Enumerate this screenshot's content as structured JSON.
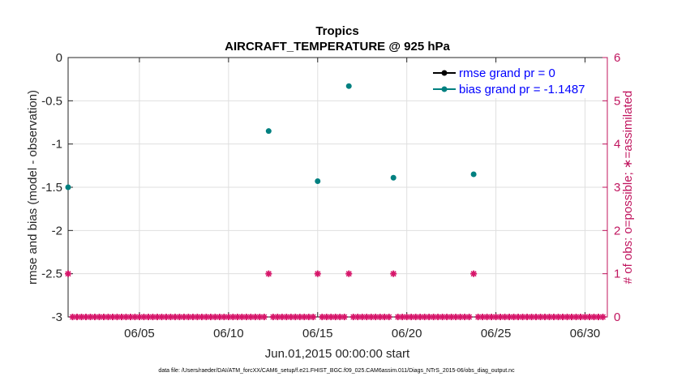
{
  "chart_data": {
    "type": "scatter",
    "title": "Tropics",
    "subtitle": "AIRCRAFT_TEMPERATURE @ 925 hPa",
    "xlabel": "Jun.01,2015 00:00:00 start",
    "ylabel": "rmse and bias (model - observation)",
    "y2label": "# of obs: o=possible; ∗=assimilated",
    "footnote": "data file: /Users/raeder/DAI/ATM_forcXX/CAM6_setup/f.e21.FHIST_BGC.f09_025.CAM6assim.011/Diags_NTrS_2015-06/obs_diag_output.nc",
    "xlim": [
      1,
      31.25
    ],
    "ylim": [
      -3,
      0
    ],
    "y2lim": [
      0,
      6
    ],
    "grid": true,
    "x_ticks": [
      {
        "value": 5,
        "label": "06/05"
      },
      {
        "value": 10,
        "label": "06/10"
      },
      {
        "value": 15,
        "label": "06/15"
      },
      {
        "value": 20,
        "label": "06/20"
      },
      {
        "value": 25,
        "label": "06/25"
      },
      {
        "value": 30,
        "label": "06/30"
      }
    ],
    "y_ticks": [
      {
        "value": 0,
        "label": "0"
      },
      {
        "value": -0.5,
        "label": "-0.5"
      },
      {
        "value": -1,
        "label": "-1"
      },
      {
        "value": -1.5,
        "label": "-1.5"
      },
      {
        "value": -2,
        "label": "-2"
      },
      {
        "value": -2.5,
        "label": "-2.5"
      },
      {
        "value": -3,
        "label": "-3"
      }
    ],
    "y2_ticks": [
      {
        "value": 0,
        "label": "0"
      },
      {
        "value": 1,
        "label": "1"
      },
      {
        "value": 2,
        "label": "2"
      },
      {
        "value": 3,
        "label": "3"
      },
      {
        "value": 4,
        "label": "4"
      },
      {
        "value": 5,
        "label": "5"
      },
      {
        "value": 6,
        "label": "6"
      }
    ],
    "legend_position": "top-right",
    "series": [
      {
        "name": "rmse grand pr = 0",
        "color": "#000000",
        "x": [],
        "y": []
      },
      {
        "name": "bias grand pr = -1.1487",
        "color": "#008080",
        "x": [
          1.0,
          12.25,
          15.0,
          16.75,
          19.25,
          23.75
        ],
        "y": [
          -1.5,
          -0.85,
          -1.43,
          -0.33,
          -1.39,
          -1.35
        ]
      }
    ],
    "obs_counts": {
      "color": "#d6166a",
      "x_start": 1.0,
      "x_step": 0.25,
      "n_points": 121,
      "nonzero": [
        {
          "x": 1.0,
          "count": 1
        },
        {
          "x": 12.25,
          "count": 1
        },
        {
          "x": 15.0,
          "count": 1
        },
        {
          "x": 16.75,
          "count": 1
        },
        {
          "x": 19.25,
          "count": 1
        },
        {
          "x": 23.75,
          "count": 1
        }
      ]
    }
  }
}
